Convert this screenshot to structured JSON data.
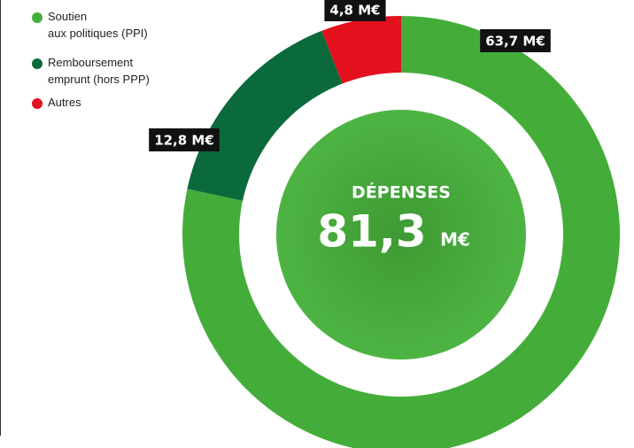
{
  "chart_data": {
    "type": "donut",
    "categories": [
      "Soutien aux politiques (PPI)",
      "Remboursement emprunt (hors PPP)",
      "Autres"
    ],
    "values": [
      63.7,
      12.8,
      4.8
    ],
    "value_labels": [
      "63,7 M€",
      "12,8 M€",
      "4,8 M€"
    ],
    "colors": [
      "#44ad3a",
      "#0a6a3b",
      "#e3101e"
    ],
    "center_title": "DÉPENSES",
    "center_value": 81.3,
    "center_value_label": "81,3",
    "center_unit": "M€"
  }
}
